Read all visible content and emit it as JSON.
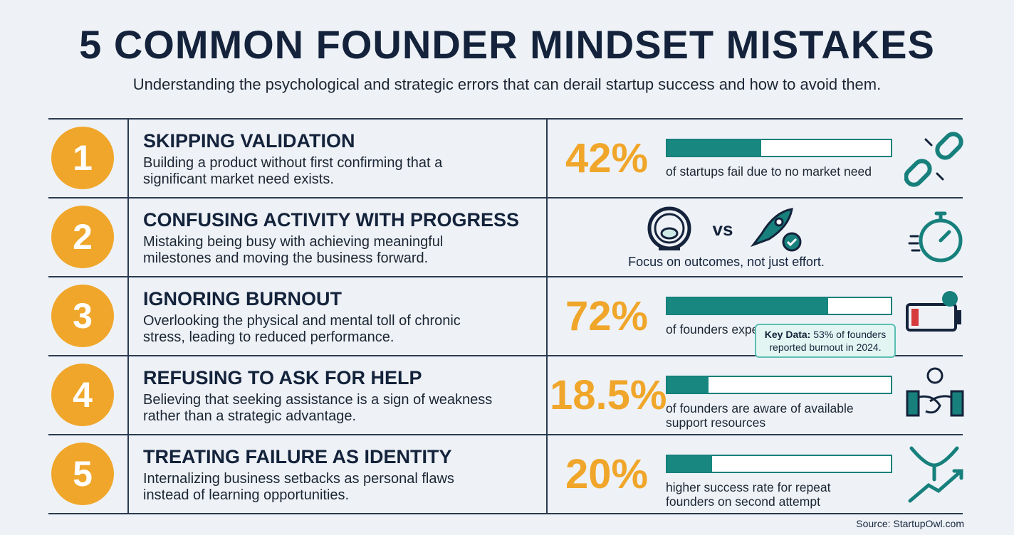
{
  "header": {
    "title": "5 COMMON FOUNDER MINDSET MISTAKES",
    "subtitle": "Understanding the psychological and strategic errors that can derail startup success and how to avoid them."
  },
  "items": [
    {
      "number": 1,
      "title": "SKIPPING VALIDATION",
      "description": "Building a product without first confirming that a significant market need exists.",
      "stat": {
        "value": 42,
        "label": "42%",
        "caption": "of startups fail due to no market need"
      }
    },
    {
      "number": 2,
      "title": "CONFUSING ACTIVITY WITH PROGRESS",
      "description": "Mistaking being busy with achieving meaningful milestones and moving the business forward.",
      "comparison": {
        "vs": "vs",
        "caption": "Focus on outcomes, not just effort."
      }
    },
    {
      "number": 3,
      "title": "IGNORING BURNOUT",
      "description": "Overlooking the physical and mental toll of chronic stress, leading to reduced performance.",
      "stat": {
        "value": 72,
        "label": "72%",
        "caption": "of founders experience burnout"
      },
      "callout": {
        "label": "Key Data:",
        "text": "53% of founders reported burnout in 2024."
      }
    },
    {
      "number": 4,
      "title": "REFUSING TO ASK FOR HELP",
      "description": "Believing that seeking assistance is a sign of weakness rather than a strategic advantage.",
      "stat": {
        "value": 18.5,
        "label": "18.5%",
        "caption": "of founders are aware of available support resources"
      }
    },
    {
      "number": 5,
      "title": "TREATING FAILURE AS IDENTITY",
      "description": "Internalizing business setbacks as personal flaws instead of learning opportunities.",
      "stat": {
        "value": 20,
        "label": "20%",
        "caption": "higher success rate for repeat founders on second attempt"
      }
    }
  ],
  "footer": {
    "source": "Source: StartupOwl.com"
  }
}
